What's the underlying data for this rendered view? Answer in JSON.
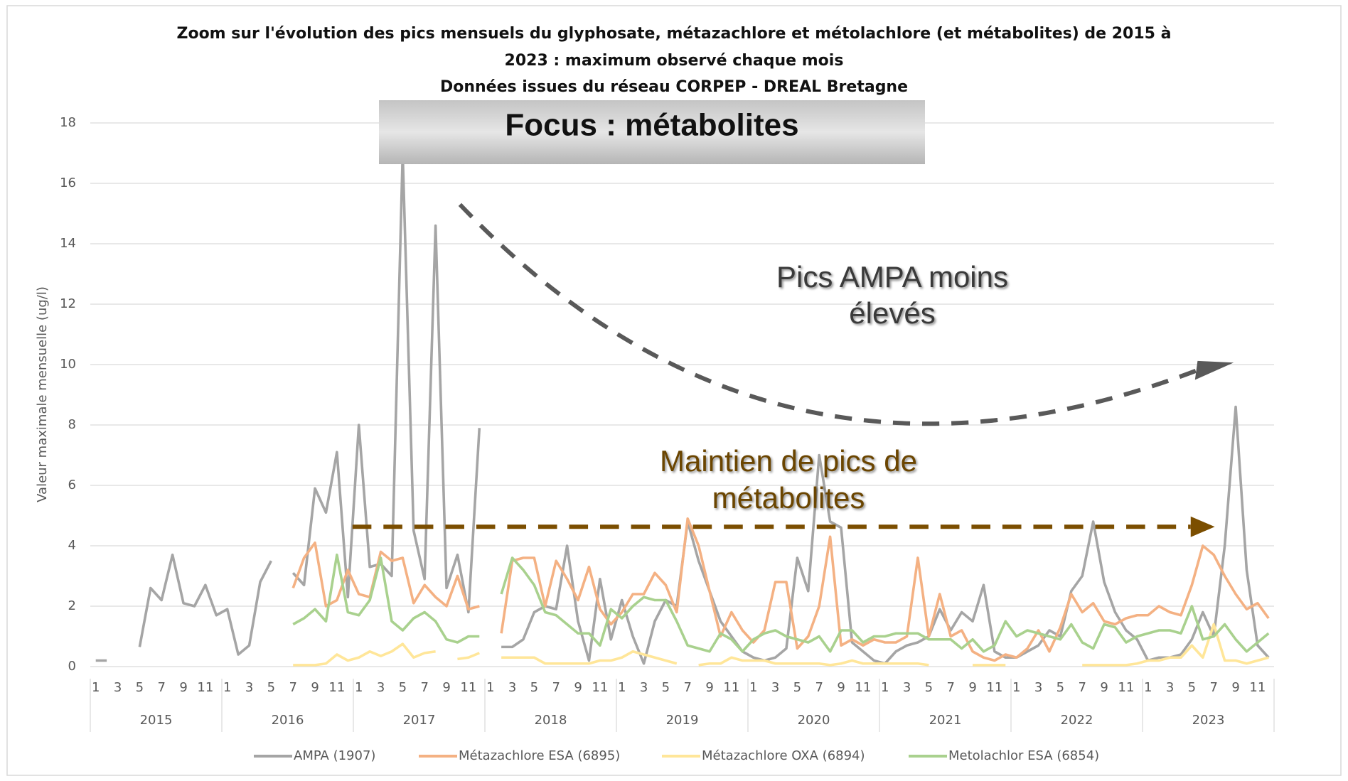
{
  "chart_data": {
    "type": "line",
    "title": [
      "Zoom sur l'évolution des pics mensuels du glyphosate, métazachlore et métolachlore (et métabolites) de 2015 à",
      "2023 : maximum observé chaque mois",
      "Données issues du réseau CORPEP - DREAL Bretagne"
    ],
    "y_label": "Valeur maximale mensuelle (ug/l)",
    "banner": "Focus : métabolites",
    "annotations": [
      [
        "Pics AMPA moins",
        "élevés"
      ],
      [
        "Maintien de pics de",
        "métabolites"
      ]
    ],
    "years": [
      "2015",
      "2016",
      "2017",
      "2018",
      "2019",
      "2020",
      "2021",
      "2022",
      "2023"
    ],
    "categories": [
      "1",
      null,
      "3",
      null,
      "5",
      null,
      "7",
      null,
      "9",
      null,
      "11",
      null,
      "1",
      null,
      "3",
      null,
      "5",
      null,
      "7",
      null,
      "9",
      null,
      "11",
      null,
      "1",
      null,
      "3",
      null,
      "5",
      null,
      "7",
      null,
      "9",
      null,
      "11",
      null,
      "1",
      null,
      "3",
      null,
      "5",
      null,
      "7",
      null,
      "9",
      null,
      "11",
      null,
      "1",
      null,
      "3",
      null,
      "5",
      null,
      "7",
      null,
      "9",
      null,
      "11",
      null,
      "1",
      null,
      "3",
      null,
      "5",
      null,
      "7",
      null,
      "9",
      null,
      "11",
      null,
      "1",
      null,
      "3",
      null,
      "5",
      null,
      "7",
      null,
      "9",
      null,
      "11",
      null,
      "1",
      null,
      "3",
      null,
      "5",
      null,
      "7",
      null,
      "9",
      null,
      "11",
      null,
      "1",
      null,
      "3",
      null,
      "5",
      null,
      "7",
      null,
      "9",
      null,
      "11",
      null
    ],
    "ylim": [
      0,
      18
    ],
    "yticks": [
      0,
      2,
      4,
      6,
      8,
      10,
      12,
      14,
      16,
      18
    ],
    "grid": true,
    "legend": "bottom",
    "series": [
      {
        "name": "AMPA (1907)",
        "color": "#a5a5a5",
        "values": [
          0.2,
          0.2,
          null,
          null,
          0.65,
          2.6,
          2.2,
          3.7,
          2.1,
          2.0,
          2.7,
          1.7,
          1.9,
          0.4,
          0.7,
          2.8,
          3.5,
          null,
          3.1,
          2.7,
          5.9,
          5.1,
          7.1,
          2.3,
          8.0,
          3.3,
          3.4,
          3.0,
          17.0,
          4.5,
          2.9,
          14.6,
          2.6,
          3.7,
          1.8,
          7.9,
          null,
          0.65,
          0.65,
          0.9,
          1.8,
          2.0,
          1.9,
          4.0,
          1.5,
          0.2,
          2.9,
          0.9,
          2.2,
          1.0,
          0.1,
          1.5,
          2.2,
          2.0,
          4.8,
          3.5,
          2.5,
          1.5,
          1.0,
          0.5,
          0.3,
          0.2,
          0.3,
          0.6,
          3.6,
          2.5,
          7.0,
          4.8,
          4.6,
          0.8,
          0.5,
          0.2,
          0.1,
          0.5,
          0.7,
          0.8,
          1.0,
          1.9,
          1.2,
          1.8,
          1.5,
          2.7,
          0.5,
          0.3,
          0.3,
          0.5,
          0.7,
          1.2,
          1.0,
          2.5,
          3.0,
          4.8,
          2.8,
          1.8,
          1.2,
          0.9,
          0.2,
          0.3,
          0.3,
          0.4,
          0.9,
          1.8,
          1.0,
          4.0,
          8.6,
          3.2,
          0.7,
          0.3
        ]
      },
      {
        "name": "Métazachlore ESA (6895)",
        "color": "#f4b183",
        "values": [
          null,
          null,
          null,
          null,
          null,
          null,
          null,
          null,
          null,
          null,
          null,
          null,
          null,
          null,
          null,
          null,
          null,
          null,
          2.6,
          3.6,
          4.1,
          2.0,
          2.2,
          3.2,
          2.4,
          2.3,
          3.8,
          3.5,
          3.6,
          2.1,
          2.7,
          2.3,
          2.0,
          3.0,
          1.9,
          2.0,
          null,
          1.1,
          3.5,
          3.6,
          3.6,
          2.0,
          3.5,
          2.9,
          2.2,
          3.3,
          1.9,
          1.4,
          1.8,
          2.4,
          2.4,
          3.1,
          2.7,
          1.8,
          4.9,
          4.0,
          2.5,
          1.0,
          1.8,
          1.2,
          0.8,
          1.2,
          2.8,
          2.8,
          0.6,
          1.0,
          2.0,
          4.3,
          0.7,
          0.9,
          0.7,
          0.9,
          0.8,
          0.8,
          1.0,
          3.6,
          1.0,
          2.4,
          1.0,
          1.2,
          0.5,
          0.3,
          0.2,
          0.4,
          0.3,
          0.6,
          1.2,
          0.5,
          1.3,
          2.4,
          1.8,
          2.1,
          1.5,
          1.4,
          1.6,
          1.7,
          1.7,
          2.0,
          1.8,
          1.7,
          2.7,
          4.0,
          3.7,
          3.0,
          2.4,
          1.9,
          2.1,
          1.6
        ]
      },
      {
        "name": "Métazachlore OXA (6894)",
        "color": "#ffe699",
        "values": [
          null,
          null,
          null,
          null,
          null,
          null,
          null,
          null,
          null,
          null,
          null,
          null,
          null,
          null,
          null,
          null,
          null,
          null,
          0.05,
          0.05,
          0.05,
          0.1,
          0.4,
          0.2,
          0.3,
          0.5,
          0.35,
          0.5,
          0.75,
          0.3,
          0.45,
          0.5,
          null,
          0.25,
          0.3,
          0.45,
          null,
          0.3,
          0.3,
          0.3,
          0.3,
          0.1,
          0.1,
          0.1,
          0.1,
          0.1,
          0.2,
          0.2,
          0.3,
          0.5,
          0.4,
          0.3,
          0.2,
          0.1,
          null,
          0.05,
          0.1,
          0.1,
          0.3,
          0.2,
          0.2,
          0.2,
          0.1,
          0.1,
          0.1,
          0.1,
          0.1,
          0.05,
          0.1,
          0.2,
          0.1,
          0.1,
          0.1,
          0.1,
          0.1,
          0.1,
          0.05,
          null,
          null,
          null,
          0.05,
          0.05,
          0.05,
          0.05,
          null,
          null,
          null,
          null,
          null,
          null,
          0.05,
          0.05,
          0.05,
          0.05,
          0.05,
          0.1,
          0.2,
          0.2,
          0.3,
          0.3,
          0.7,
          0.3,
          1.4,
          0.2,
          0.2,
          0.1,
          0.2,
          0.3
        ]
      },
      {
        "name": "Metolachlor ESA (6854)",
        "color": "#a9d18e",
        "values": [
          null,
          null,
          null,
          null,
          null,
          null,
          null,
          null,
          null,
          null,
          null,
          null,
          null,
          null,
          null,
          null,
          null,
          null,
          1.4,
          1.6,
          1.9,
          1.5,
          3.7,
          1.8,
          1.7,
          2.2,
          3.6,
          1.5,
          1.2,
          1.6,
          1.8,
          1.5,
          0.9,
          0.8,
          1.0,
          1.0,
          null,
          2.4,
          3.6,
          3.2,
          2.7,
          1.8,
          1.7,
          1.4,
          1.1,
          1.1,
          0.7,
          1.9,
          1.6,
          2.0,
          2.3,
          2.2,
          2.2,
          1.5,
          0.7,
          0.6,
          0.5,
          1.1,
          0.9,
          0.5,
          0.9,
          1.1,
          1.2,
          1.0,
          0.9,
          0.8,
          1.0,
          0.5,
          1.2,
          1.2,
          0.8,
          1.0,
          1.0,
          1.1,
          1.1,
          1.1,
          0.9,
          0.9,
          0.9,
          0.6,
          0.9,
          0.5,
          0.7,
          1.5,
          1.0,
          1.2,
          1.1,
          1.0,
          0.9,
          1.4,
          0.8,
          0.6,
          1.4,
          1.3,
          0.8,
          1.0,
          1.1,
          1.2,
          1.2,
          1.1,
          2.0,
          0.9,
          1.0,
          1.4,
          0.9,
          0.5,
          0.8,
          1.1
        ]
      }
    ]
  }
}
